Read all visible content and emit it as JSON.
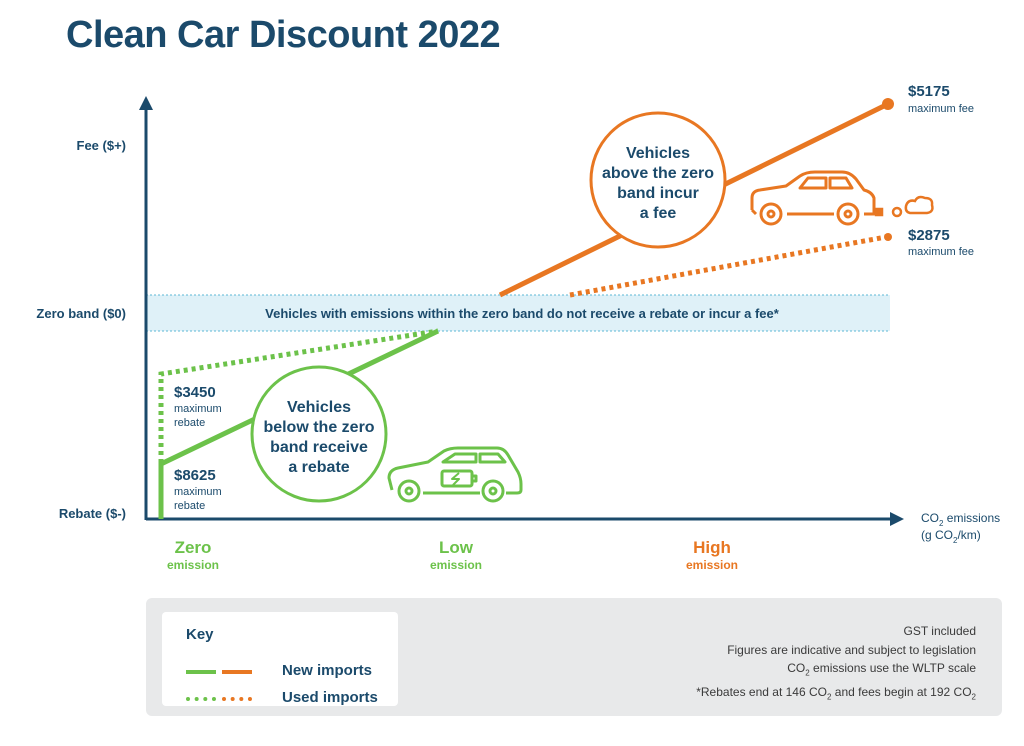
{
  "title": "Clean Car Discount 2022",
  "axes": {
    "fee_label": "Fee ($+)",
    "zero_band_label": "Zero band ($0)",
    "rebate_label": "Rebate ($-)",
    "x_label_line1": "CO",
    "x_label_sub": "2",
    "x_label_line1_rest": " emissions",
    "x_label_line2_pre": "(g CO",
    "x_label_line2_sub": "2",
    "x_label_line2_post": "/km)"
  },
  "zero_band_text": "Vehicles with emissions within the zero band do not receive a rebate or incur a fee*",
  "fees": {
    "new_value": "$5175",
    "new_caption": "maximum fee",
    "used_value": "$2875",
    "used_caption": "maximum fee"
  },
  "rebates": {
    "used_value": "$3450",
    "used_caption_1": "maximum",
    "used_caption_2": "rebate",
    "new_value": "$8625",
    "new_caption_1": "maximum",
    "new_caption_2": "rebate"
  },
  "bubbles": {
    "fee": [
      "Vehicles",
      "above the zero",
      "band incur",
      "a fee"
    ],
    "rebate": [
      "Vehicles",
      "below the zero",
      "band receive",
      "a rebate"
    ]
  },
  "emission_levels": [
    {
      "word": "Zero",
      "sub": "emission",
      "color": "#6cc24a"
    },
    {
      "word": "Low",
      "sub": "emission",
      "color": "#6cc24a"
    },
    {
      "word": "High",
      "sub": "emission",
      "color": "#e87722"
    }
  ],
  "key": {
    "title": "Key",
    "new_imports": "New imports",
    "used_imports": "Used imports"
  },
  "notes": {
    "line1": "GST included",
    "line2": "Figures are indicative and subject to legislation",
    "line3_pre": "CO",
    "line3_sub": "2",
    "line3_post": " emissions use the WLTP scale",
    "line4_pre": "*Rebates end at 146 CO",
    "line4_sub": "2",
    "line4_mid": " and fees begin at 192 CO",
    "line4_sub2": "2"
  },
  "colors": {
    "navy": "#1b4a6b",
    "green": "#6cc24a",
    "orange": "#e87722",
    "zero_band_fill": "#dff1f8",
    "zero_band_border": "#5cb8d6"
  },
  "icons": {
    "electric_car": "electric-car-icon",
    "fuel_car": "fuel-car-icon",
    "exhaust": "exhaust-cloud-icon"
  }
}
